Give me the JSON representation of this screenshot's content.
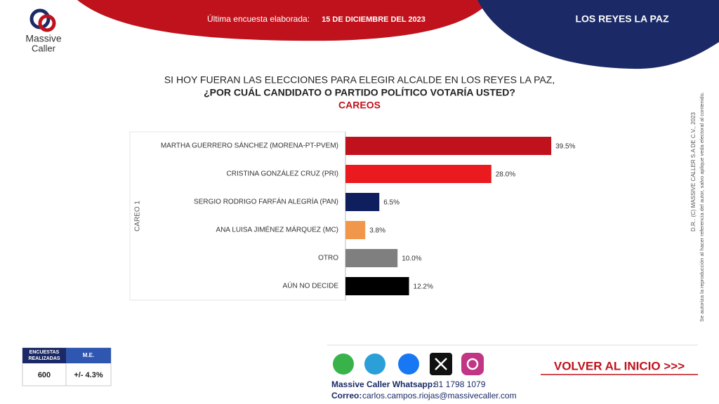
{
  "header": {
    "survey_label": "Última encuesta elaborada:",
    "survey_date": "15 DE DICIEMBRE DEL 2023",
    "location": "LOS REYES LA PAZ",
    "logo_top": "Massive",
    "logo_bottom": "Caller"
  },
  "chart_data": {
    "type": "bar",
    "orientation": "horizontal",
    "title": "SI HOY FUERAN LAS ELECCIONES PARA ELEGIR ALCALDE EN LOS REYES LA PAZ,",
    "title_line2": "¿POR CUÁL CANDIDATO O PARTIDO POLÍTICO VOTARÍA USTED?",
    "subtitle": "CAREOS",
    "y_label": "CAREO 1",
    "categories": [
      "MARTHA GUERRERO SÁNCHEZ (MORENA-PT-PVEM)",
      "CRISTINA GONZÁLEZ CRUZ (PRI)",
      "SERGIO RODRIGO FARFÁN ALEGRÍA (PAN)",
      "ANA LUISA JIMÉNEZ MÁRQUEZ (MC)",
      "OTRO",
      "AÚN NO DECIDE"
    ],
    "values": [
      39.5,
      28.0,
      6.5,
      3.8,
      10.0,
      12.2
    ],
    "value_labels": [
      "39.5%",
      "28.0%",
      "6.5%",
      "3.8%",
      "10.0%",
      "12.2%"
    ],
    "colors": [
      "#c0121c",
      "#ea1a1f",
      "#0f1f5e",
      "#f1974b",
      "#7f7f7f",
      "#000000"
    ]
  },
  "side_notes": {
    "copyright": "D.R.. (C) MASSIVE CALLER S.A DE C.V., 2023",
    "reproduction": "Se autoriza la reproducción al hacer referencia del autor, salvo aplique veda electoral al contenido."
  },
  "table": {
    "headers": [
      "ENCUESTAS REALIZADAS",
      "M.E."
    ],
    "rows": [
      [
        600,
        "+/- 4.3%"
      ]
    ]
  },
  "footer": {
    "back_link": "VOLVER AL INICIO >>>",
    "whatsapp_label": "Massive Caller Whatsapp:",
    "whatsapp_number": "81 1798 1079",
    "email_label": "Correo:",
    "email": "carlos.campos.riojas@massivecaller.com"
  }
}
